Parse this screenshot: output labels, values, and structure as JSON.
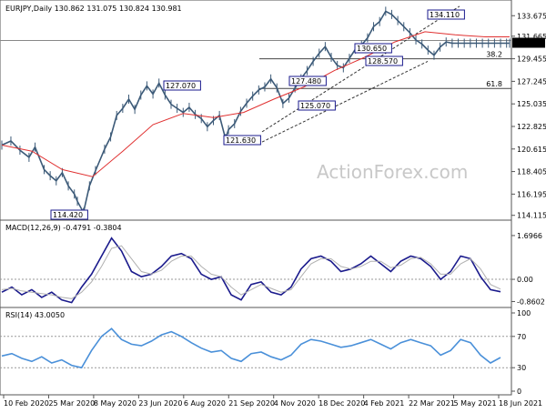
{
  "chart_data": [
    {
      "type": "line",
      "pane": "price",
      "title": "EURJPY,Daily  130.862 131.075 130.824 130.981",
      "watermark": "ActionForex.com",
      "x_ticks": [
        "10 Feb 2020",
        "25 Mar 2020",
        "8 May 2020",
        "23 Jun 2020",
        "6 Aug 2020",
        "21 Sep 2020",
        "4 Nov 2020",
        "18 Dec 2020",
        "4 Feb 2021",
        "22 Mar 2021",
        "5 May 2021",
        "18 Jun 2021"
      ],
      "y_ticks": [
        "133.675",
        "131.665",
        "129.455",
        "127.245",
        "125.035",
        "122.825",
        "120.615",
        "118.405",
        "116.195",
        "114.115"
      ],
      "ylim": [
        114.0,
        134.5
      ],
      "current_price": "130.981",
      "annotations": [
        "134.110",
        "130.650",
        "128.570",
        "127.480",
        "127.070",
        "125.070",
        "121.630",
        "114.420"
      ],
      "fib_labels": [
        "38.2",
        "61.8"
      ],
      "series": [
        {
          "name": "EURJPY",
          "color": "#3c5a78",
          "x": [
            0,
            6,
            12,
            18,
            22,
            28,
            32,
            36,
            40,
            44,
            48,
            50,
            54,
            58,
            62,
            68,
            72,
            76,
            80,
            84,
            88,
            92,
            96,
            100,
            104,
            108,
            112,
            116,
            120,
            124,
            128,
            132,
            136,
            140,
            144,
            148,
            150,
            154,
            158,
            162,
            166,
            170,
            174,
            178,
            182,
            186,
            190,
            194,
            198,
            202,
            206,
            210,
            214,
            218,
            222,
            226,
            230,
            234,
            238,
            242,
            246,
            250,
            254,
            258,
            262,
            266,
            270,
            274,
            278,
            282,
            286,
            290,
            294,
            298,
            302,
            306,
            310,
            314,
            318,
            322,
            326,
            330,
            334,
            336
          ],
          "values": [
            121.0,
            121.4,
            120.5,
            119.8,
            120.8,
            118.6,
            118.0,
            117.5,
            118.3,
            117.0,
            116.2,
            115.5,
            114.4,
            117.0,
            118.5,
            120.6,
            121.8,
            123.9,
            124.6,
            125.5,
            124.5,
            125.9,
            126.8,
            126.0,
            127.07,
            125.9,
            125.0,
            124.6,
            124.2,
            124.7,
            124.0,
            123.6,
            122.8,
            123.4,
            123.9,
            121.63,
            122.5,
            123.1,
            124.3,
            125.1,
            125.8,
            126.4,
            126.7,
            127.48,
            126.6,
            125.07,
            125.6,
            126.6,
            127.5,
            128.3,
            129.2,
            130.0,
            130.65,
            129.6,
            128.8,
            128.57,
            129.5,
            130.4,
            130.8,
            131.5,
            132.6,
            133.1,
            134.11,
            133.8,
            133.2,
            132.6,
            132.0,
            131.3,
            130.9,
            130.3,
            129.8,
            130.6,
            131.1,
            130.981,
            130.981,
            130.981,
            130.981,
            130.981,
            130.981,
            130.981,
            130.981,
            130.981,
            130.981,
            130.981
          ]
        },
        {
          "name": "MA",
          "color": "#e03030",
          "x": [
            0,
            20,
            40,
            60,
            80,
            100,
            120,
            140,
            160,
            180,
            200,
            220,
            240,
            260,
            280,
            300,
            320,
            336
          ],
          "values": [
            121.0,
            120.4,
            118.6,
            117.9,
            120.4,
            123.0,
            124.1,
            123.7,
            124.2,
            125.5,
            126.7,
            128.3,
            129.6,
            131.1,
            132.1,
            131.8,
            131.6,
            131.6
          ]
        }
      ]
    },
    {
      "type": "line",
      "pane": "macd",
      "title": "MACD(12,26,9) -0.4791 -0.3804",
      "y_ticks": [
        "1.6966",
        "0.00",
        "-0.8602"
      ],
      "ylim": [
        -0.95,
        1.8
      ],
      "series": [
        {
          "name": "MACD",
          "color": "#1a1a8c",
          "values": [
            -0.5,
            -0.3,
            -0.6,
            -0.4,
            -0.7,
            -0.5,
            -0.8,
            -0.9,
            -0.3,
            0.2,
            0.9,
            1.6,
            1.1,
            0.3,
            0.1,
            0.2,
            0.5,
            0.9,
            1.0,
            0.8,
            0.2,
            0.0,
            0.1,
            -0.6,
            -0.8,
            -0.2,
            -0.1,
            -0.5,
            -0.6,
            -0.3,
            0.4,
            0.8,
            0.9,
            0.7,
            0.3,
            0.4,
            0.6,
            0.9,
            0.6,
            0.3,
            0.7,
            0.9,
            0.8,
            0.5,
            0.0,
            0.3,
            0.9,
            0.8,
            0.1,
            -0.4,
            -0.48
          ]
        },
        {
          "name": "Signal",
          "color": "#b0b0b0",
          "values": [
            -0.4,
            -0.35,
            -0.45,
            -0.5,
            -0.55,
            -0.6,
            -0.7,
            -0.75,
            -0.5,
            -0.1,
            0.5,
            1.2,
            1.3,
            0.8,
            0.3,
            0.2,
            0.35,
            0.7,
            0.9,
            0.9,
            0.5,
            0.2,
            0.1,
            -0.3,
            -0.6,
            -0.4,
            -0.2,
            -0.35,
            -0.5,
            -0.4,
            0.1,
            0.6,
            0.8,
            0.8,
            0.5,
            0.4,
            0.5,
            0.7,
            0.7,
            0.45,
            0.55,
            0.8,
            0.85,
            0.6,
            0.2,
            0.2,
            0.6,
            0.8,
            0.4,
            -0.2,
            -0.38
          ]
        }
      ]
    },
    {
      "type": "line",
      "pane": "rsi",
      "title": "RSI(14) 43.0050",
      "y_ticks": [
        "100",
        "70",
        "30",
        "0"
      ],
      "ylim": [
        0,
        100
      ],
      "series": [
        {
          "name": "RSI",
          "color": "#4a90d9",
          "values": [
            45,
            48,
            42,
            38,
            44,
            36,
            40,
            33,
            30,
            52,
            70,
            80,
            66,
            60,
            58,
            64,
            72,
            76,
            70,
            62,
            55,
            50,
            52,
            42,
            38,
            48,
            50,
            44,
            40,
            46,
            60,
            66,
            64,
            60,
            56,
            58,
            62,
            66,
            60,
            54,
            62,
            66,
            62,
            58,
            46,
            52,
            66,
            62,
            46,
            36,
            43
          ]
        }
      ]
    }
  ]
}
